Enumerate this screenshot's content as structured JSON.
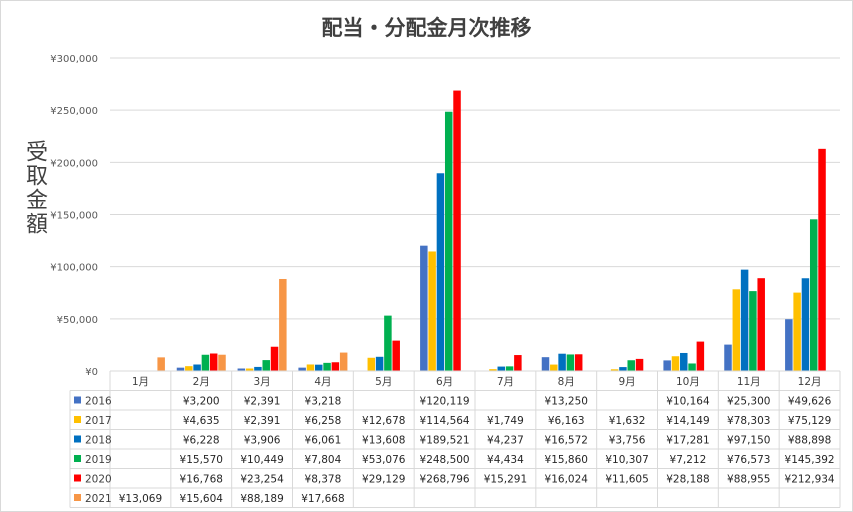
{
  "chart_data": {
    "type": "bar",
    "title": "配当・分配金月次推移",
    "ylabel": "受取金額",
    "xlabel": "",
    "ylim": [
      0,
      300000
    ],
    "yticks": [
      "¥0",
      "¥50,000",
      "¥100,000",
      "¥150,000",
      "¥200,000",
      "¥250,000",
      "¥300,000"
    ],
    "grid": true,
    "legend": "data-table",
    "categories": [
      "1月",
      "2月",
      "3月",
      "4月",
      "5月",
      "6月",
      "7月",
      "8月",
      "9月",
      "10月",
      "11月",
      "12月"
    ],
    "series": [
      {
        "name": "2016",
        "color": "#4472c4",
        "values": [
          null,
          3200,
          2391,
          3218,
          null,
          120119,
          null,
          13250,
          null,
          10164,
          25300,
          49626
        ],
        "labels": [
          "",
          "¥3,200",
          "¥2,391",
          "¥3,218",
          "",
          "¥120,119",
          "",
          "¥13,250",
          "",
          "¥10,164",
          "¥25,300",
          "¥49,626"
        ]
      },
      {
        "name": "2017",
        "color": "#ffc000",
        "values": [
          null,
          4635,
          2391,
          6258,
          12678,
          114564,
          1749,
          6163,
          1632,
          14149,
          78303,
          75129
        ],
        "labels": [
          "",
          "¥4,635",
          "¥2,391",
          "¥6,258",
          "¥12,678",
          "¥114,564",
          "¥1,749",
          "¥6,163",
          "¥1,632",
          "¥14,149",
          "¥78,303",
          "¥75,129"
        ]
      },
      {
        "name": "2018",
        "color": "#0070c0",
        "values": [
          null,
          6228,
          3906,
          6061,
          13608,
          189521,
          4237,
          16572,
          3756,
          17281,
          97150,
          88898
        ],
        "labels": [
          "",
          "¥6,228",
          "¥3,906",
          "¥6,061",
          "¥13,608",
          "¥189,521",
          "¥4,237",
          "¥16,572",
          "¥3,756",
          "¥17,281",
          "¥97,150",
          "¥88,898"
        ]
      },
      {
        "name": "2019",
        "color": "#00b050",
        "values": [
          null,
          15570,
          10449,
          7804,
          53076,
          248500,
          4434,
          15860,
          10307,
          7212,
          76573,
          145392
        ],
        "labels": [
          "",
          "¥15,570",
          "¥10,449",
          "¥7,804",
          "¥53,076",
          "¥248,500",
          "¥4,434",
          "¥15,860",
          "¥10,307",
          "¥7,212",
          "¥76,573",
          "¥145,392"
        ]
      },
      {
        "name": "2020",
        "color": "#ff0000",
        "values": [
          null,
          16768,
          23254,
          8378,
          29129,
          268796,
          15291,
          16024,
          11605,
          28188,
          88955,
          212934
        ],
        "labels": [
          "",
          "¥16,768",
          "¥23,254",
          "¥8,378",
          "¥29,129",
          "¥268,796",
          "¥15,291",
          "¥16,024",
          "¥11,605",
          "¥28,188",
          "¥88,955",
          "¥212,934"
        ]
      },
      {
        "name": "2021",
        "color": "#f79646",
        "values": [
          13069,
          15604,
          88189,
          17668,
          null,
          null,
          null,
          null,
          null,
          null,
          null,
          null
        ],
        "labels": [
          "¥13,069",
          "¥15,604",
          "¥88,189",
          "¥17,668",
          "",
          "",
          "",
          "",
          "",
          "",
          "",
          ""
        ]
      }
    ]
  }
}
